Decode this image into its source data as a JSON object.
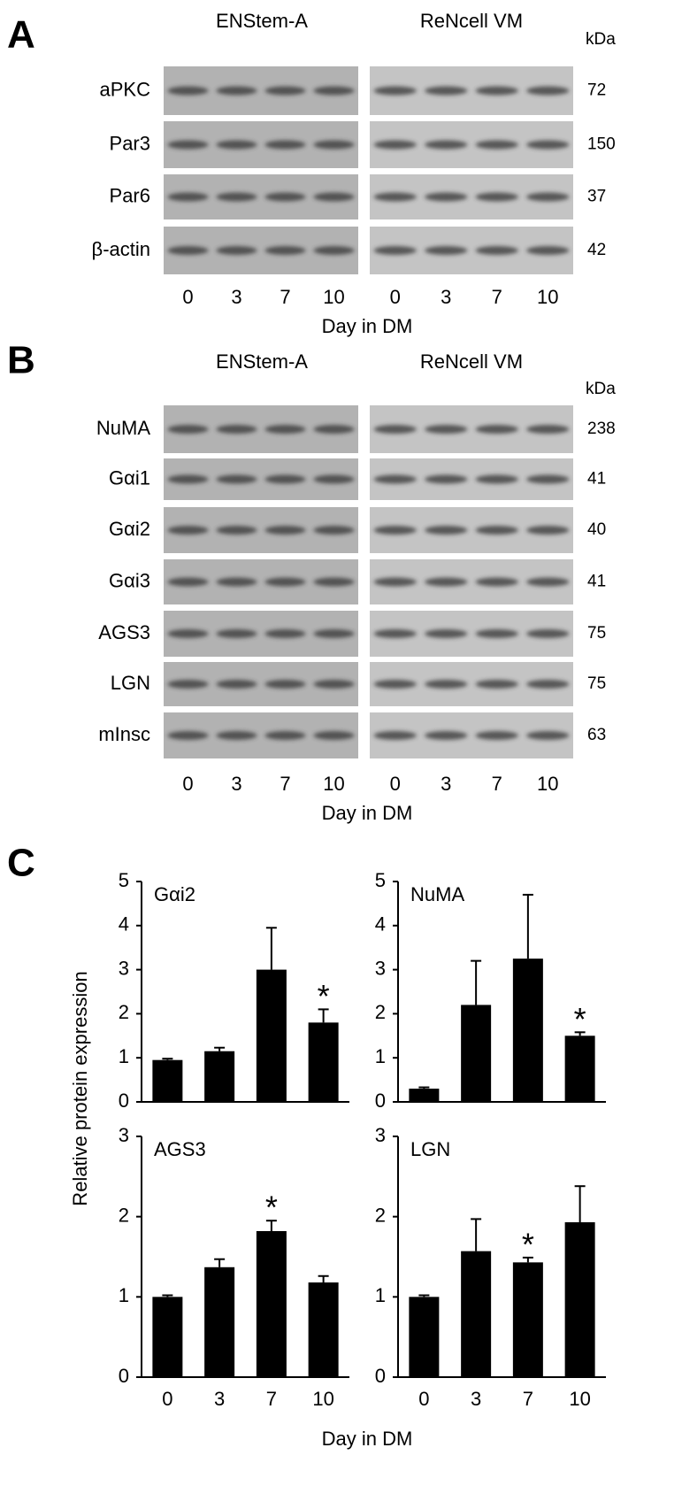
{
  "panel_a": {
    "label": "A",
    "headings": [
      "ENStem-A",
      "ReNcell VM"
    ],
    "kda_label": "kDa",
    "rows": [
      {
        "label": "aPKC",
        "kda": 72
      },
      {
        "label": "Par3",
        "kda": 150
      },
      {
        "label": "Par6",
        "kda": 37
      },
      {
        "label": "β-actin",
        "kda": 42
      }
    ],
    "lanes": [
      0,
      3,
      7,
      10
    ],
    "xlabel": "Day in DM"
  },
  "panel_b": {
    "label": "B",
    "headings": [
      "ENStem-A",
      "ReNcell VM"
    ],
    "kda_label": "kDa",
    "rows": [
      {
        "label": "NuMA",
        "kda": 238
      },
      {
        "label": "Gαi1",
        "kda": 41
      },
      {
        "label": "Gαi2",
        "kda": 40
      },
      {
        "label": "Gαi3",
        "kda": 41
      },
      {
        "label": "AGS3",
        "kda": 75
      },
      {
        "label": "LGN",
        "kda": 75
      },
      {
        "label": "mInsc",
        "kda": 63
      }
    ],
    "lanes": [
      0,
      3,
      7,
      10
    ],
    "xlabel": "Day in DM"
  },
  "panel_c": {
    "label": "C",
    "ylabel": "Relative protein expression",
    "xlabel": "Day in DM"
  },
  "chart_data": [
    {
      "type": "bar",
      "title": "Gαi2",
      "values": [
        0.95,
        1.15,
        3.0,
        1.8
      ],
      "errors": [
        0.03,
        0.08,
        0.95,
        0.3
      ],
      "significant": [
        false,
        false,
        false,
        true
      ],
      "significance_label": "*",
      "color": "#000000",
      "ylim": [
        0,
        5
      ],
      "yticks": [
        0,
        1,
        2,
        3,
        4,
        5
      ]
    },
    {
      "type": "bar",
      "title": "NuMA",
      "values": [
        0.3,
        2.2,
        3.25,
        1.5
      ],
      "errors": [
        0.03,
        1.0,
        1.45,
        0.08
      ],
      "significant": [
        false,
        false,
        false,
        true
      ],
      "significance_label": "*",
      "color": "#000000",
      "ylim": [
        0,
        5
      ],
      "yticks": [
        0,
        1,
        2,
        3,
        4,
        5
      ]
    },
    {
      "type": "bar",
      "title": "AGS3",
      "categories": [
        "0",
        "3",
        "7",
        "10"
      ],
      "values": [
        1.0,
        1.37,
        1.82,
        1.18
      ],
      "errors": [
        0.02,
        0.1,
        0.13,
        0.08
      ],
      "significant": [
        false,
        false,
        true,
        false
      ],
      "significance_label": "*",
      "color": "#000000",
      "ylim": [
        0,
        3
      ],
      "yticks": [
        0,
        1,
        2,
        3
      ]
    },
    {
      "type": "bar",
      "title": "LGN",
      "categories": [
        "0",
        "3",
        "7",
        "10"
      ],
      "values": [
        1.0,
        1.57,
        1.43,
        1.93
      ],
      "errors": [
        0.02,
        0.4,
        0.06,
        0.45
      ],
      "significant": [
        false,
        false,
        true,
        false
      ],
      "significance_label": "*",
      "color": "#000000",
      "ylim": [
        0,
        3
      ],
      "yticks": [
        0,
        1,
        2,
        3
      ]
    }
  ]
}
